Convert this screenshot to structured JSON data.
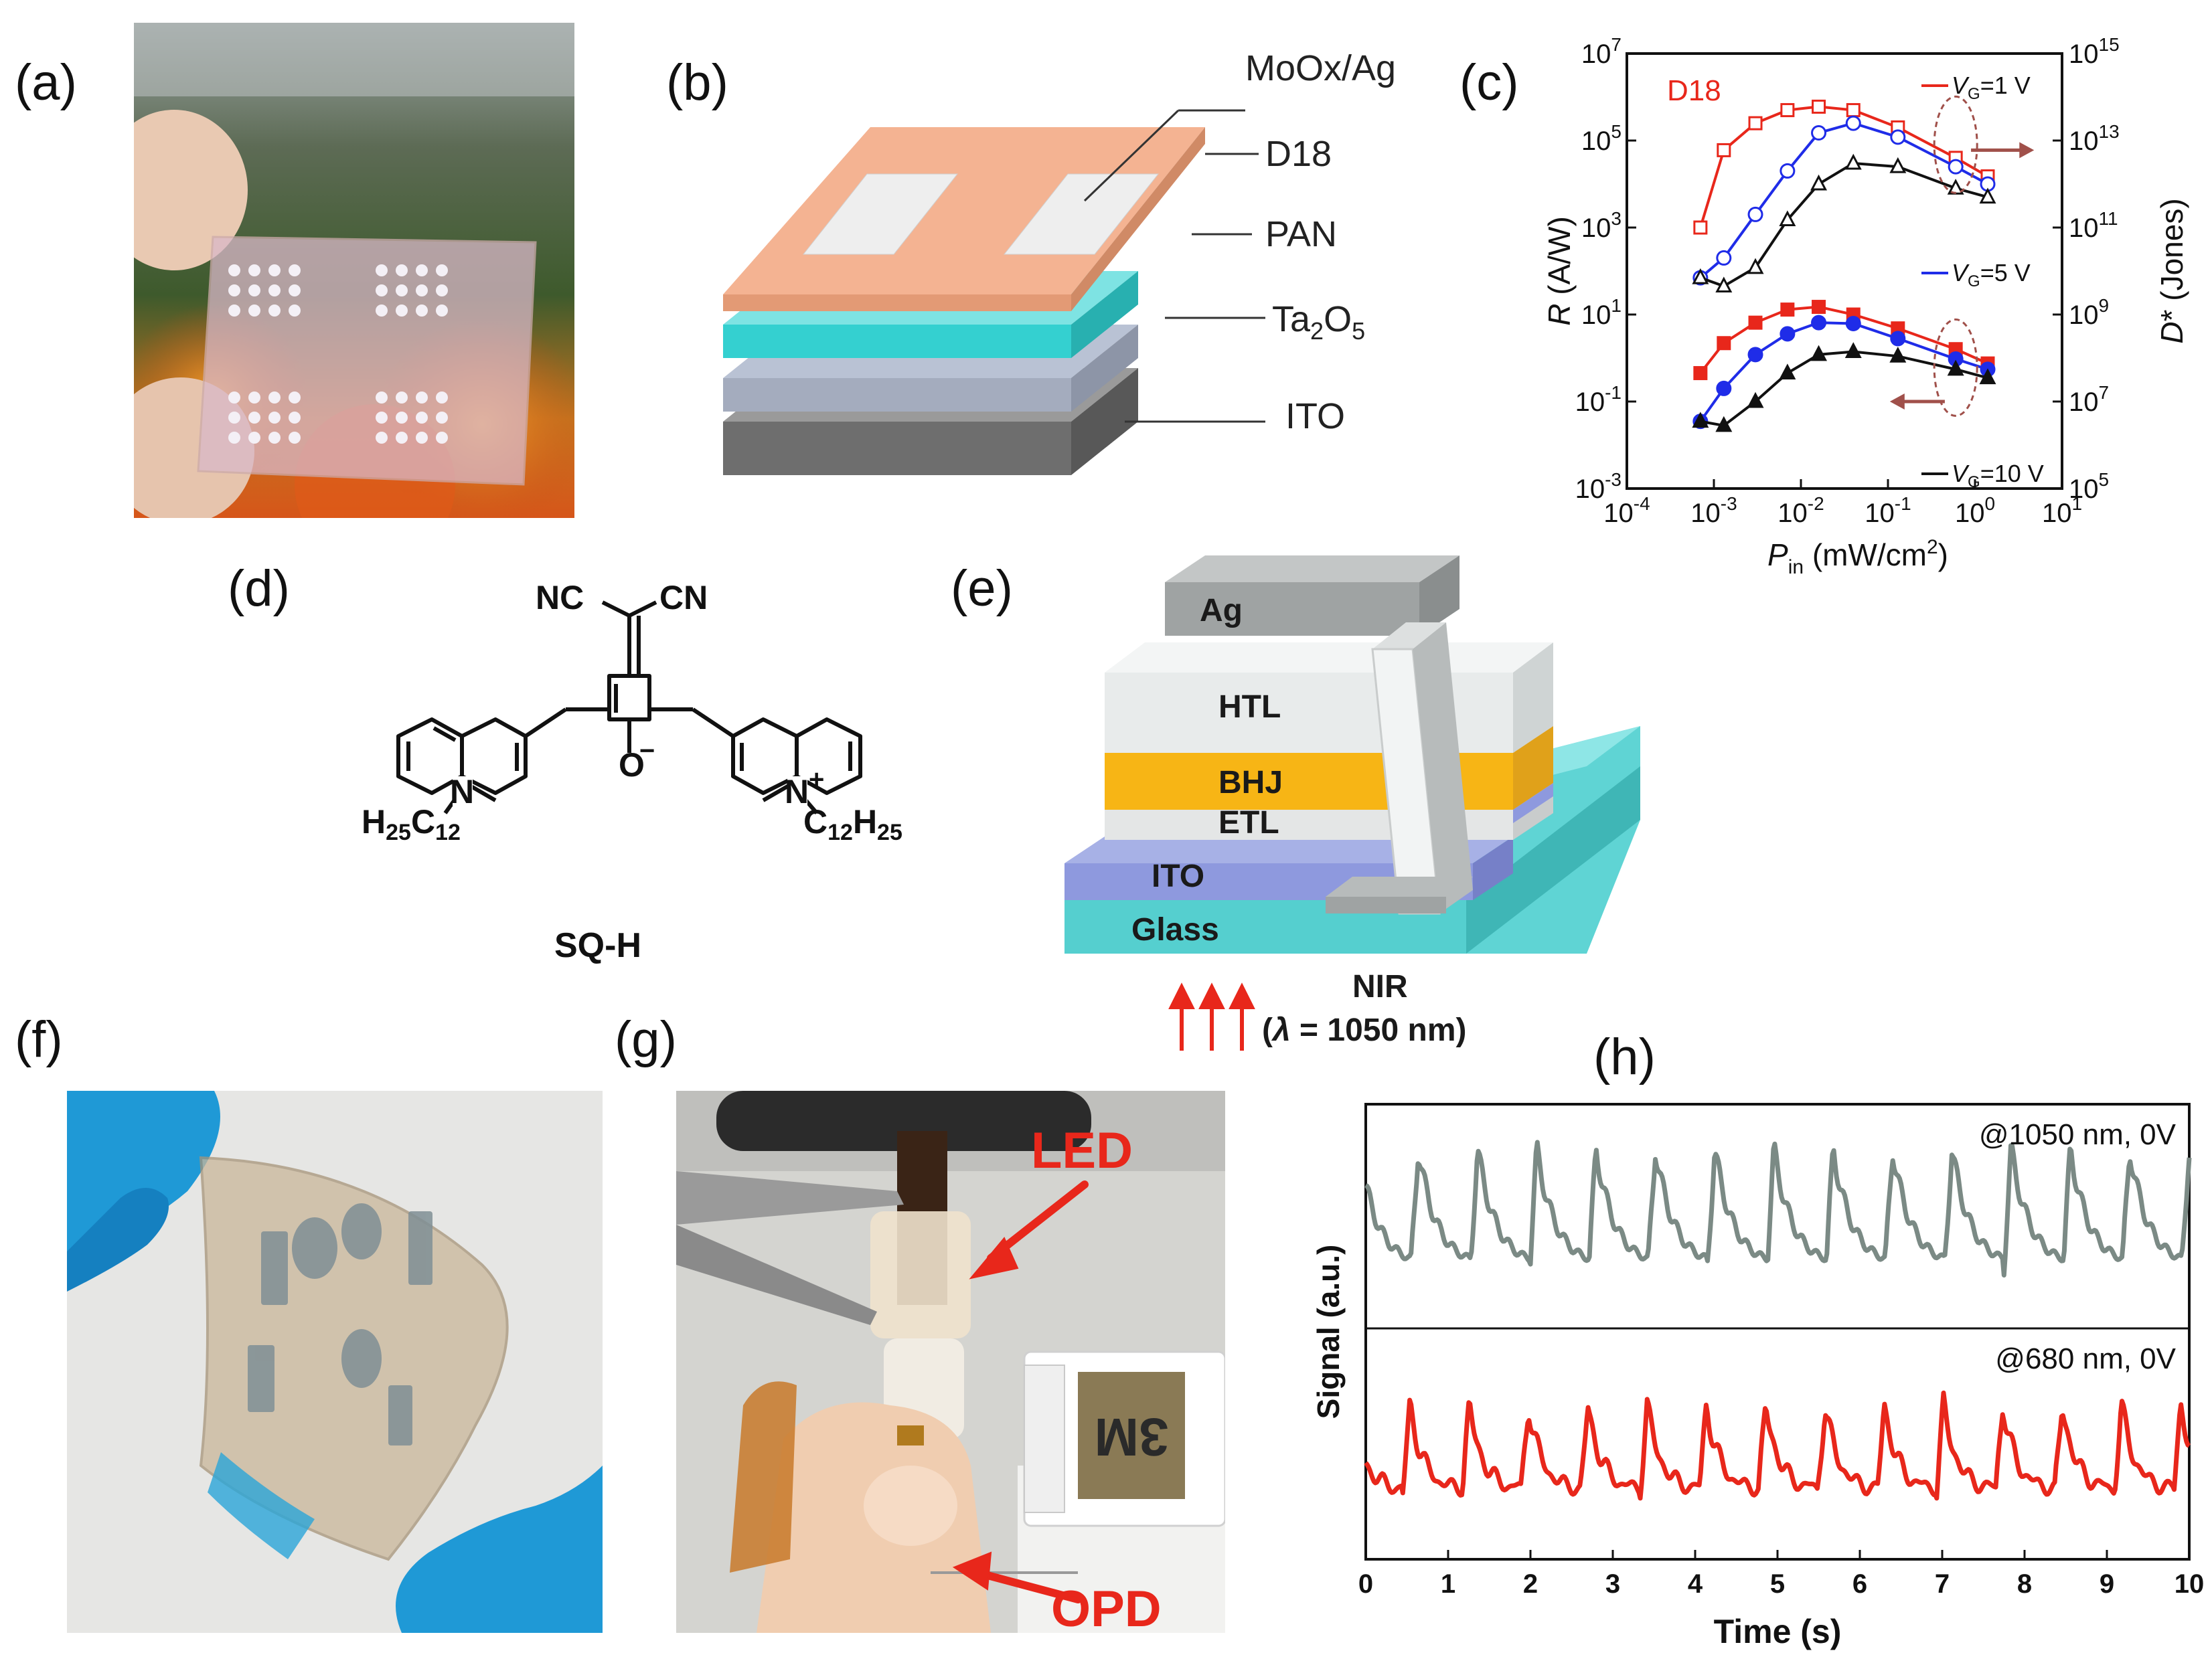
{
  "panels": {
    "a": {
      "label": "(a)"
    },
    "b": {
      "label": "(b)",
      "layers": {
        "top": "MoOx/Ag",
        "d18": "D18",
        "pan": "PAN",
        "ta2o5_main": "Ta",
        "ta2o5_sub1": "2",
        "ta2o5_mid": "O",
        "ta2o5_sub2": "5",
        "ito": "ITO"
      }
    },
    "c": {
      "label": "(c)"
    },
    "d": {
      "label": "(d)",
      "molecule_name": "SQ-H",
      "atoms": {
        "nc": "NC",
        "cn": "CN",
        "n_left": "N",
        "n_right": "N",
        "plus": "+",
        "o": "O",
        "minus": "−",
        "h25": "H",
        "c12": "C",
        "sub12": "12",
        "sub25": "25"
      }
    },
    "e": {
      "label": "(e)",
      "layers": {
        "ag": "Ag",
        "htl": "HTL",
        "bhj": "BHJ",
        "etl": "ETL",
        "ito": "ITO",
        "glass": "Glass"
      },
      "light_label": "NIR",
      "light_open": "(",
      "light_symbol": "λ",
      "light_value": " = 1050 nm)"
    },
    "f": {
      "label": "(f)"
    },
    "g": {
      "label": "(g)",
      "led_label": "LED",
      "opd_label": "OPD",
      "tape_label": "3M"
    },
    "h": {
      "label": "(h)"
    }
  },
  "colors": {
    "red": "#e8271b",
    "blue": "#1f2ce8",
    "black": "#111111",
    "gray_trace": "#7b8a85",
    "red_trace": "#e8271b"
  },
  "chart_data": [
    {
      "type": "line",
      "panel": "c",
      "title": "D18",
      "xscale": "log",
      "yscale": "log",
      "xlim": [
        0.0001,
        10
      ],
      "ylim": [
        0.001,
        10000000
      ],
      "xlabel_main": "P",
      "xlabel_sub": "in",
      "xlabel_units": " (mW/cm",
      "xlabel_sup": "2",
      "xlabel_close": ")",
      "ylabel_main": "R",
      "ylabel_units": " (A/W)",
      "y2label_main": "D",
      "y2label_rest": "* (Jones)",
      "y2lim": [
        100000,
        1000000000000000
      ],
      "xticks": [
        {
          "base": "10",
          "exp": "-4",
          "value": 0.0001
        },
        {
          "base": "10",
          "exp": "-3",
          "value": 0.001
        },
        {
          "base": "10",
          "exp": "-2",
          "value": 0.01
        },
        {
          "base": "10",
          "exp": "-1",
          "value": 0.1
        },
        {
          "base": "10",
          "exp": "0",
          "value": 1
        },
        {
          "base": "10",
          "exp": "1",
          "value": 10
        }
      ],
      "yticks": [
        {
          "base": "10",
          "exp": "-3",
          "value": 0.001
        },
        {
          "base": "10",
          "exp": "-1",
          "value": 0.1
        },
        {
          "base": "10",
          "exp": "1",
          "value": 10
        },
        {
          "base": "10",
          "exp": "3",
          "value": 1000
        },
        {
          "base": "10",
          "exp": "5",
          "value": 100000
        },
        {
          "base": "10",
          "exp": "7",
          "value": 10000000
        }
      ],
      "y2ticks": [
        {
          "base": "10",
          "exp": "5",
          "value": 100000
        },
        {
          "base": "10",
          "exp": "7",
          "value": 10000000
        },
        {
          "base": "10",
          "exp": "9",
          "value": 1000000000
        },
        {
          "base": "10",
          "exp": "11",
          "value": 100000000000
        },
        {
          "base": "10",
          "exp": "13",
          "value": 10000000000000
        },
        {
          "base": "10",
          "exp": "15",
          "value": 1000000000000000
        }
      ],
      "legend": [
        {
          "color": "red",
          "prefix": "V",
          "sub": "G",
          "text": "=1 V"
        },
        {
          "color": "blue",
          "prefix": "V",
          "sub": "G",
          "text": "=5 V"
        },
        {
          "color": "black",
          "prefix": "V",
          "sub": "G",
          "text": "=10 V"
        }
      ],
      "x": [
        0.0007,
        0.0013,
        0.003,
        0.007,
        0.016,
        0.04,
        0.13,
        0.6,
        1.4
      ],
      "series": [
        {
          "name": "R VG=1 V",
          "axis": "left",
          "color": "red",
          "marker": "filled-square",
          "values": [
            0.45,
            2.2,
            6.5,
            13,
            15,
            10,
            4.8,
            1.6,
            0.75
          ]
        },
        {
          "name": "R VG=5 V",
          "axis": "left",
          "color": "blue",
          "marker": "filled-circle",
          "values": [
            0.035,
            0.2,
            1.2,
            3.6,
            6.5,
            6.2,
            2.8,
            0.95,
            0.55
          ]
        },
        {
          "name": "R VG=10 V",
          "axis": "left",
          "color": "black",
          "marker": "filled-triangle",
          "values": [
            0.035,
            0.028,
            0.1,
            0.45,
            1.2,
            1.4,
            1.1,
            0.55,
            0.35
          ]
        },
        {
          "name": "D* VG=1 V",
          "axis": "right",
          "color": "red",
          "marker": "open-square",
          "values": [
            100000000000,
            6000000000000,
            25000000000000,
            50000000000000,
            60000000000000,
            50000000000000,
            20000000000000,
            4000000000000,
            1500000000000
          ]
        },
        {
          "name": "D* VG=5 V",
          "axis": "right",
          "color": "blue",
          "marker": "open-circle",
          "values": [
            7000000000,
            20000000000,
            200000000000,
            2000000000000,
            15000000000000,
            25000000000000,
            12000000000000,
            2500000000000,
            1000000000000
          ]
        },
        {
          "name": "D* VG=10 V",
          "axis": "right",
          "color": "black",
          "marker": "open-triangle",
          "values": [
            7000000000,
            4500000000,
            12000000000,
            150000000000,
            1000000000000,
            3000000000000,
            2500000000000,
            800000000000,
            500000000000
          ]
        }
      ]
    },
    {
      "type": "line",
      "panel": "h",
      "xlabel": "Time (s)",
      "ylabel": "Signal (a.u.)",
      "xlim": [
        0,
        10
      ],
      "xticks": [
        "0",
        "1",
        "2",
        "3",
        "4",
        "5",
        "6",
        "7",
        "8",
        "9",
        "10"
      ],
      "pulse_period_s": 0.72,
      "series": [
        {
          "name": "@1050 nm, 0V",
          "color": "gray_trace"
        },
        {
          "name": "@680 nm, 0V",
          "color": "red_trace"
        }
      ]
    }
  ]
}
